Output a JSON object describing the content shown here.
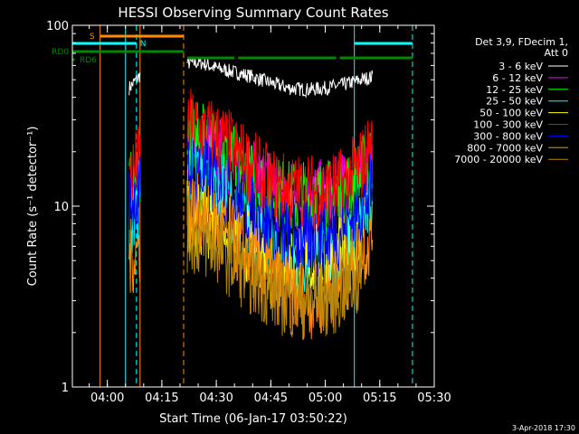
{
  "chart_data": {
    "type": "line",
    "title": "HESSI Observing Summary Count Rates",
    "xlabel": "Start Time (06-Jan-17 03:50:22)",
    "ylabel": "Count Rate (s⁻¹ detector⁻¹)",
    "yscale": "log",
    "ylim": [
      1,
      100
    ],
    "xlim": [
      "03:50:22",
      "05:30:00"
    ],
    "xticks": [
      "04:00",
      "04:15",
      "04:30",
      "04:45",
      "05:00",
      "05:15",
      "05:30"
    ],
    "yticks": [
      "1",
      "10",
      "100"
    ],
    "legend_header": [
      "Det 3,9, FDecim 1,",
      "Att 0"
    ],
    "legend_position": "right",
    "series": [
      {
        "name": "3 - 6 keV",
        "color": "#000000",
        "x": [
          "04:06",
          "04:08",
          "04:09",
          "04:22",
          "04:26",
          "04:30",
          "04:35",
          "04:40",
          "04:45",
          "04:50",
          "04:55",
          "05:00",
          "05:05",
          "05:10",
          "05:13"
        ],
        "y": [
          45,
          50,
          53,
          62,
          62,
          58,
          55,
          52,
          48,
          45,
          44,
          45,
          47,
          50,
          52
        ]
      },
      {
        "name": "6 - 12 keV",
        "color": "#ff00ff",
        "x": [
          "04:22",
          "04:30",
          "04:35",
          "04:40",
          "04:45",
          "04:50",
          "04:55",
          "05:00",
          "05:05",
          "05:10",
          "05:13"
        ],
        "y": [
          22,
          20,
          17,
          14,
          12,
          11,
          11,
          11,
          12,
          14,
          17
        ]
      },
      {
        "name": "12 - 25 keV",
        "color": "#00ff00",
        "x": [
          "04:06",
          "04:09",
          "04:22",
          "04:30",
          "04:35",
          "04:40",
          "04:45",
          "04:50",
          "04:55",
          "05:00",
          "05:05",
          "05:10",
          "05:13"
        ],
        "y": [
          12,
          16,
          24,
          21,
          17,
          14,
          12,
          11,
          11,
          11,
          12,
          15,
          19
        ]
      },
      {
        "name": "25 - 50 keV",
        "color": "#00ffff",
        "x": [
          "04:06",
          "04:09",
          "04:22",
          "04:30",
          "04:35",
          "04:40",
          "04:45",
          "04:50",
          "04:55",
          "05:00",
          "05:05",
          "05:10",
          "05:13"
        ],
        "y": [
          8,
          10,
          17,
          13,
          10,
          7.5,
          6,
          5,
          5,
          5,
          6,
          8,
          11
        ]
      },
      {
        "name": "50 - 100 keV",
        "color": "#ffff00",
        "x": [
          "04:22",
          "04:30",
          "04:40",
          "04:50",
          "05:00",
          "05:10"
        ],
        "y": [
          9,
          8,
          6,
          5,
          5,
          6
        ]
      },
      {
        "name": "100 - 300 keV",
        "color": "#ff0000",
        "x": [
          "04:06",
          "04:09",
          "04:22",
          "04:30",
          "04:35",
          "04:40",
          "04:45",
          "04:50",
          "04:55",
          "05:00",
          "05:05",
          "05:10",
          "05:13"
        ],
        "y": [
          14,
          18,
          28,
          24,
          20,
          16,
          13,
          12,
          12,
          12,
          13,
          17,
          22
        ]
      },
      {
        "name": "300 - 800 keV",
        "color": "#0000ff",
        "x": [
          "04:06",
          "04:09",
          "04:22",
          "04:30",
          "04:35",
          "04:40",
          "04:45",
          "04:50",
          "04:55",
          "05:00",
          "05:05",
          "05:10",
          "05:13"
        ],
        "y": [
          10,
          12,
          16,
          14,
          11,
          9,
          7.5,
          6.5,
          6.5,
          6.5,
          7.5,
          10,
          13
        ]
      },
      {
        "name": "800 - 7000 keV",
        "color": "#ff8c00",
        "x": [
          "04:06",
          "04:09",
          "04:22",
          "04:30",
          "04:35",
          "04:40",
          "04:45",
          "04:50",
          "04:55",
          "05:00",
          "05:05",
          "05:10",
          "05:13"
        ],
        "y": [
          5,
          6,
          10,
          8,
          6.5,
          5,
          4,
          3.2,
          3,
          3.2,
          4,
          5.5,
          7
        ]
      },
      {
        "name": "7000 - 20000 keV",
        "color": "#b8860b",
        "x": [
          "04:22",
          "04:30",
          "04:40",
          "04:50",
          "05:00",
          "05:10"
        ],
        "y": [
          7,
          6,
          4,
          3,
          3,
          4
        ]
      }
    ],
    "flag_bars": [
      {
        "label": "S",
        "color": "#ff8c00",
        "start": "03:58",
        "end": "04:21"
      },
      {
        "label": "N",
        "color": "#00ffff",
        "start": "03:50:22",
        "end": "04:08",
        "label_at": "04:08"
      },
      {
        "label": "N",
        "color": "#00ffff",
        "start": "05:08",
        "end": "05:24"
      },
      {
        "label": "RD0",
        "color": "#008800",
        "start": "03:50:22",
        "end": "04:21"
      },
      {
        "label": "RD0",
        "color": "#008800",
        "start": "04:22",
        "end": "04:35"
      },
      {
        "label": "RD0",
        "color": "#008800",
        "start": "04:36",
        "end": "05:03"
      },
      {
        "label": "RD0",
        "color": "#008800",
        "start": "05:04",
        "end": "05:24"
      },
      {
        "label": "RD6",
        "color": "#008800",
        "start": "03:50:22",
        "end": "03:51"
      }
    ],
    "vertical_markers": [
      {
        "time": "03:50:22",
        "color": "#00ffff",
        "style": "solid"
      },
      {
        "time": "03:58",
        "color": "#ff8c00",
        "style": "solid"
      },
      {
        "time": "04:05",
        "color": "#00ffff",
        "style": "solid"
      },
      {
        "time": "04:08",
        "color": "#00ffff",
        "style": "dashed"
      },
      {
        "time": "04:09",
        "color": "#ff8c00",
        "style": "solid"
      },
      {
        "time": "04:21",
        "color": "#ff8c00",
        "style": "dashed"
      },
      {
        "time": "05:08",
        "color": "#00ffff",
        "style": "solid"
      },
      {
        "time": "05:24",
        "color": "#00ffff",
        "style": "dashed"
      }
    ],
    "timestamp": "3-Apr-2018 17:30"
  }
}
